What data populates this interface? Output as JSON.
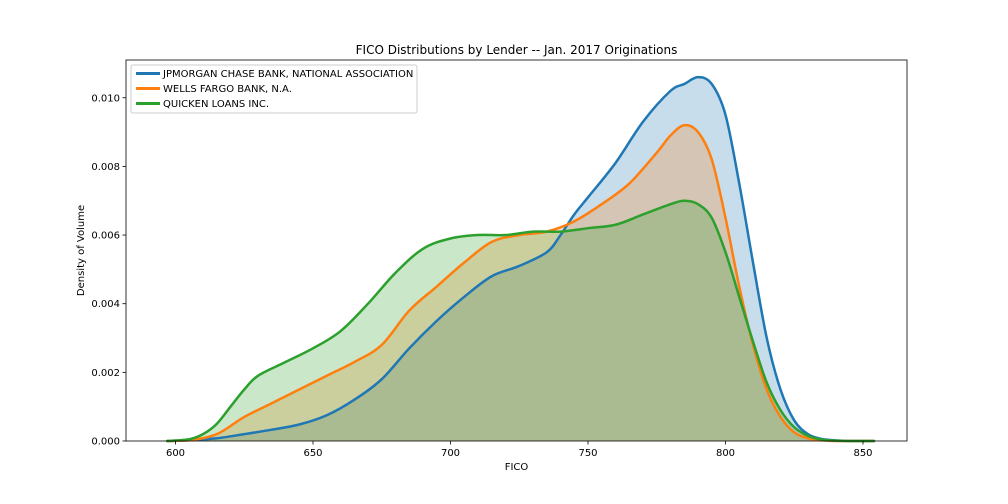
{
  "chart_data": {
    "type": "area",
    "title": "FICO Distributions by Lender -- Jan. 2017 Originations",
    "xlabel": "FICO",
    "ylabel": "Density of Volume",
    "xlim": [
      582,
      866
    ],
    "ylim": [
      0,
      0.0111
    ],
    "xticks": [
      600,
      650,
      700,
      750,
      800,
      850
    ],
    "xtick_labels": [
      "600",
      "650",
      "700",
      "750",
      "800",
      "850"
    ],
    "yticks": [
      0,
      0.002,
      0.004,
      0.006,
      0.008,
      0.01
    ],
    "ytick_labels": [
      "0.000",
      "0.002",
      "0.004",
      "0.006",
      "0.008",
      "0.010"
    ],
    "grid": false,
    "legend_position": "upper-left",
    "series": [
      {
        "name": "JPMORGAN CHASE BANK, NATIONAL ASSOCIATION",
        "color": "#1f77b4",
        "x": [
          597,
          605,
          615,
          625,
          635,
          645,
          655,
          665,
          675,
          685,
          695,
          705,
          715,
          725,
          735,
          740,
          745,
          750,
          760,
          770,
          780,
          785,
          790,
          795,
          800,
          805,
          810,
          815,
          820,
          825,
          830,
          835,
          840,
          845,
          850,
          854
        ],
        "y": [
          0,
          2e-05,
          8e-05,
          0.0002,
          0.00033,
          0.00048,
          0.00075,
          0.0012,
          0.0018,
          0.0027,
          0.0035,
          0.0042,
          0.0048,
          0.0051,
          0.0055,
          0.006,
          0.0066,
          0.0071,
          0.0081,
          0.0093,
          0.0102,
          0.0104,
          0.0106,
          0.0104,
          0.0095,
          0.0075,
          0.0052,
          0.003,
          0.0015,
          0.0006,
          0.0002,
          6e-05,
          2e-05,
          0,
          0,
          0
        ]
      },
      {
        "name": "WELLS FARGO BANK, N.A.",
        "color": "#ff7f0e",
        "x": [
          597,
          605,
          615,
          625,
          635,
          645,
          655,
          665,
          675,
          685,
          695,
          705,
          715,
          725,
          735,
          745,
          755,
          765,
          775,
          780,
          785,
          790,
          795,
          800,
          805,
          810,
          815,
          820,
          825,
          830,
          835,
          840,
          845,
          850,
          854
        ],
        "y": [
          0,
          2e-05,
          0.0002,
          0.0007,
          0.0011,
          0.0015,
          0.0019,
          0.0023,
          0.0028,
          0.0038,
          0.0045,
          0.0052,
          0.0058,
          0.006,
          0.0061,
          0.0064,
          0.0069,
          0.0075,
          0.0084,
          0.0089,
          0.0092,
          0.009,
          0.0082,
          0.0065,
          0.0045,
          0.0028,
          0.0015,
          0.0007,
          0.00025,
          8e-05,
          2e-05,
          0,
          0,
          0,
          0
        ]
      },
      {
        "name": "QUICKEN LOANS INC.",
        "color": "#2ca02c",
        "x": [
          597,
          605,
          610,
          615,
          620,
          625,
          630,
          640,
          650,
          660,
          670,
          680,
          690,
          700,
          710,
          720,
          730,
          740,
          750,
          760,
          770,
          780,
          785,
          790,
          795,
          800,
          805,
          810,
          815,
          820,
          825,
          830,
          835,
          840,
          845,
          850,
          854
        ],
        "y": [
          0,
          5e-05,
          0.0002,
          0.0005,
          0.001,
          0.0015,
          0.0019,
          0.0023,
          0.0027,
          0.0032,
          0.004,
          0.0049,
          0.0056,
          0.0059,
          0.006,
          0.006,
          0.0061,
          0.0061,
          0.0062,
          0.0063,
          0.0066,
          0.0069,
          0.007,
          0.0069,
          0.0065,
          0.0055,
          0.0042,
          0.0029,
          0.0017,
          0.0009,
          0.0004,
          0.00015,
          4e-05,
          1e-05,
          0,
          0,
          0
        ]
      }
    ]
  }
}
